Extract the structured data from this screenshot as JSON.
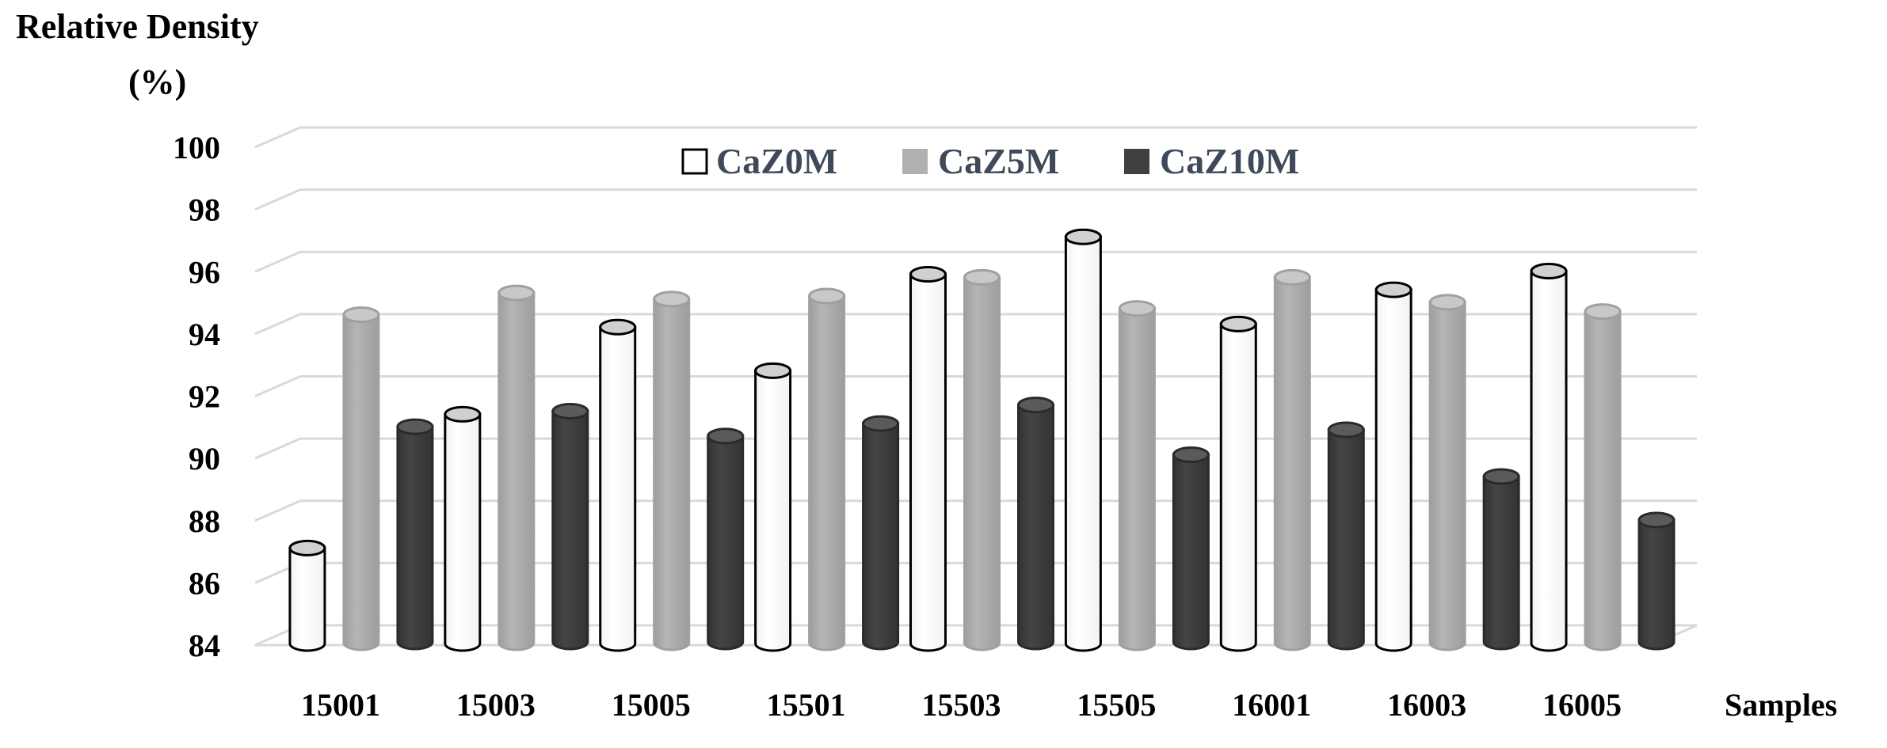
{
  "chart_data": {
    "type": "bar",
    "title": "",
    "ylabel_line1": "Relative Density",
    "ylabel_line2": "(%)",
    "xlabel": "Samples",
    "ylim": [
      84,
      100
    ],
    "yticks": [
      "84",
      "86",
      "88",
      "90",
      "92",
      "94",
      "96",
      "98",
      "100"
    ],
    "categories": [
      "15001",
      "15003",
      "15005",
      "15501",
      "15503",
      "15505",
      "16001",
      "16003",
      "16005"
    ],
    "series": [
      {
        "name": "CaZ0M",
        "color": "#ffffff",
        "values": [
          86.8,
          91.1,
          93.9,
          92.5,
          95.6,
          96.8,
          94.0,
          95.1,
          95.7
        ]
      },
      {
        "name": "CaZ5M",
        "color": "#b0b0b0",
        "values": [
          94.3,
          95.0,
          94.8,
          94.9,
          95.5,
          94.5,
          95.5,
          94.7,
          94.4
        ]
      },
      {
        "name": "CaZ10M",
        "color": "#404040",
        "values": [
          90.7,
          91.2,
          90.4,
          90.8,
          91.4,
          89.8,
          90.6,
          89.1,
          87.7
        ]
      }
    ],
    "grid": true,
    "legend_position": "top-center"
  }
}
